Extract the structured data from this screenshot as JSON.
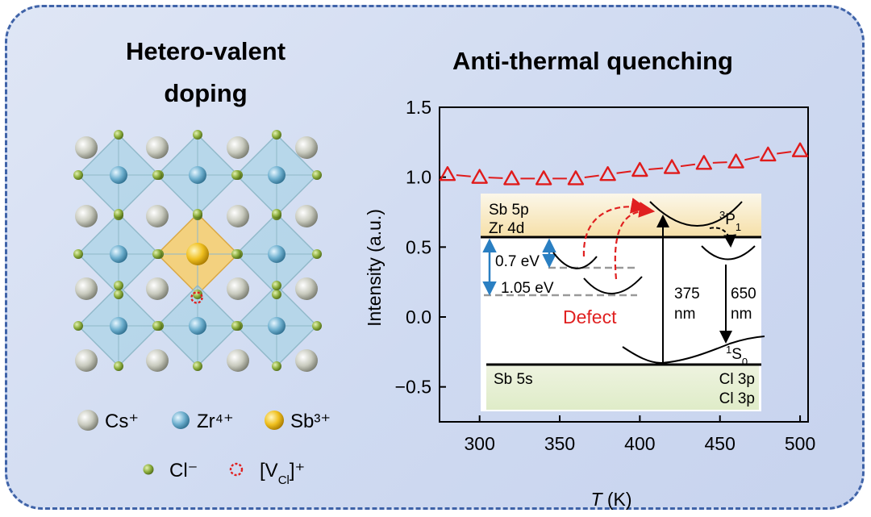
{
  "left": {
    "title_line1": "Hetero-valent",
    "title_line2": "doping",
    "legend": {
      "cs": "Cs⁺",
      "zr": "Zr⁴⁺",
      "sb": "Sb³⁺",
      "cl": "Cl⁻",
      "vcl_main": "[V",
      "vcl_sub": "Cl",
      "vcl_tail": "]⁺"
    },
    "colors": {
      "cs": "#c9cbbf",
      "zr": "#6fb0cf",
      "sb": "#f0c020",
      "cl": "#8fb040",
      "octa": "#a9d3e6",
      "octa_sb": "#f6cf72",
      "vacancy": "#e02020"
    }
  },
  "right": {
    "title": "Anti-thermal quenching",
    "inset": {
      "sb5p": "Sb 5p",
      "zr4d": "Zr 4d",
      "e1": "0.7 eV",
      "e2": "1.05 eV",
      "defect": "Defect",
      "abs_num": "375",
      "abs_unit": "nm",
      "em_num": "650",
      "em_unit": "nm",
      "p_sup": "3",
      "p_main": "P",
      "p_sub": "1",
      "s_sup": "1",
      "s_main": "S",
      "s_sub": "0",
      "sb5s": "Sb 5s",
      "cl3p_a": "Cl 3p",
      "cl3p_b": "Cl 3p"
    }
  },
  "chart_data": {
    "type": "scatter",
    "title": "Anti-thermal quenching",
    "xlabel_italic": "T",
    "xlabel_unit": " (K)",
    "ylabel": "Intensity (a.u.)",
    "xlim": [
      275,
      505
    ],
    "ylim": [
      -0.75,
      1.5
    ],
    "xticks": [
      300,
      350,
      400,
      450,
      500
    ],
    "yticks": [
      1.5,
      1.0,
      0.5,
      0.0,
      -0.5
    ],
    "ytick_labels": [
      "1.5",
      "1.0",
      "0.5",
      "0.0",
      "−0.5"
    ],
    "marker": "open-triangle",
    "color": "#e01b1b",
    "series": [
      {
        "name": "Intensity",
        "x": [
          280,
          300,
          320,
          340,
          360,
          380,
          400,
          420,
          440,
          460,
          480,
          500
        ],
        "y": [
          1.02,
          1.0,
          0.99,
          0.99,
          0.99,
          1.02,
          1.05,
          1.07,
          1.1,
          1.11,
          1.16,
          1.19
        ]
      }
    ]
  }
}
